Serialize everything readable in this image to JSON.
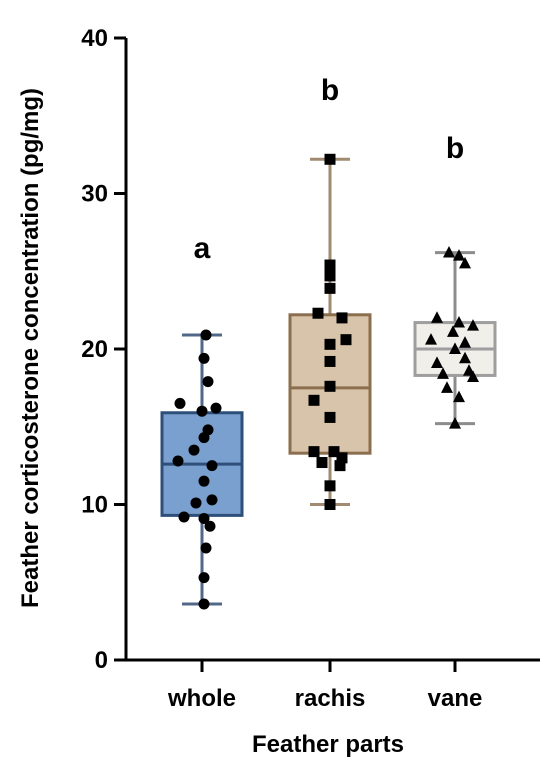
{
  "chart_data": {
    "type": "box",
    "xlabel": "Feather parts",
    "ylabel": "Feather corticosterone concentration (pg/mg)",
    "ylim": [
      0,
      40
    ],
    "yticks": [
      0,
      10,
      20,
      30,
      40
    ],
    "categories": [
      "whole",
      "rachis",
      "vane"
    ],
    "series": [
      {
        "category": "whole",
        "marker": "circle",
        "box_fill": "#7aa0d0",
        "box_stroke": "#2e4f7a",
        "whisker_stroke": "#51688a",
        "significance": "a",
        "min": 3.6,
        "q1": 9.3,
        "median": 12.6,
        "q3": 15.9,
        "max": 20.9,
        "points": [
          {
            "y": 20.9,
            "side": 0.1
          },
          {
            "y": 19.4,
            "side": 0.05
          },
          {
            "y": 17.9,
            "side": 0.15
          },
          {
            "y": 16.5,
            "side": -0.55
          },
          {
            "y": 16.2,
            "side": 0.35
          },
          {
            "y": 16.0,
            "side": 0.0
          },
          {
            "y": 14.8,
            "side": 0.15
          },
          {
            "y": 14.3,
            "side": 0.05
          },
          {
            "y": 13.5,
            "side": -0.2
          },
          {
            "y": 12.8,
            "side": -0.6
          },
          {
            "y": 12.5,
            "side": 0.25
          },
          {
            "y": 11.5,
            "side": 0.05
          },
          {
            "y": 10.3,
            "side": 0.25
          },
          {
            "y": 10.1,
            "side": -0.15
          },
          {
            "y": 9.2,
            "side": -0.45
          },
          {
            "y": 9.1,
            "side": 0.05
          },
          {
            "y": 8.6,
            "side": 0.2
          },
          {
            "y": 7.2,
            "side": 0.1
          },
          {
            "y": 5.3,
            "side": 0.05
          },
          {
            "y": 3.6,
            "side": 0.05
          }
        ]
      },
      {
        "category": "rachis",
        "marker": "square",
        "box_fill": "#d8c4aa",
        "box_stroke": "#8b6e4e",
        "whisker_stroke": "#a08a70",
        "significance": "b",
        "min": 10.0,
        "q1": 13.3,
        "median": 17.5,
        "q3": 22.2,
        "max": 32.2,
        "points": [
          {
            "y": 32.2,
            "side": 0.0
          },
          {
            "y": 25.4,
            "side": 0.0
          },
          {
            "y": 24.7,
            "side": 0.0
          },
          {
            "y": 23.9,
            "side": 0.0
          },
          {
            "y": 22.3,
            "side": -0.3
          },
          {
            "y": 22.0,
            "side": 0.3
          },
          {
            "y": 20.6,
            "side": 0.4
          },
          {
            "y": 20.3,
            "side": 0.0
          },
          {
            "y": 19.2,
            "side": 0.0
          },
          {
            "y": 17.6,
            "side": 0.0
          },
          {
            "y": 16.7,
            "side": -0.4
          },
          {
            "y": 15.6,
            "side": 0.0
          },
          {
            "y": 13.4,
            "side": -0.4
          },
          {
            "y": 13.4,
            "side": 0.1
          },
          {
            "y": 13.0,
            "side": 0.3
          },
          {
            "y": 12.7,
            "side": -0.2
          },
          {
            "y": 12.5,
            "side": 0.25
          },
          {
            "y": 11.2,
            "side": 0.0
          },
          {
            "y": 10.0,
            "side": 0.0
          }
        ]
      },
      {
        "category": "vane",
        "marker": "triangle",
        "box_fill": "#f1efe9",
        "box_stroke": "#9e9e9e",
        "whisker_stroke": "#8c8c8c",
        "significance": "b",
        "min": 15.2,
        "q1": 18.3,
        "median": 20.0,
        "q3": 21.7,
        "max": 26.2,
        "points": [
          {
            "y": 26.2,
            "side": -0.15
          },
          {
            "y": 26.0,
            "side": 0.1
          },
          {
            "y": 25.5,
            "side": 0.25
          },
          {
            "y": 22.0,
            "side": -0.45
          },
          {
            "y": 21.7,
            "side": 0.1
          },
          {
            "y": 21.5,
            "side": 0.45
          },
          {
            "y": 21.1,
            "side": -0.05
          },
          {
            "y": 20.6,
            "side": -0.6
          },
          {
            "y": 20.4,
            "side": 0.25
          },
          {
            "y": 20.0,
            "side": 0.0
          },
          {
            "y": 19.4,
            "side": 0.25
          },
          {
            "y": 19.1,
            "side": -0.45
          },
          {
            "y": 18.6,
            "side": 0.35
          },
          {
            "y": 18.4,
            "side": -0.3
          },
          {
            "y": 18.2,
            "side": 0.45
          },
          {
            "y": 17.5,
            "side": -0.2
          },
          {
            "y": 16.9,
            "side": 0.1
          },
          {
            "y": 15.2,
            "side": 0.0
          }
        ]
      }
    ]
  }
}
